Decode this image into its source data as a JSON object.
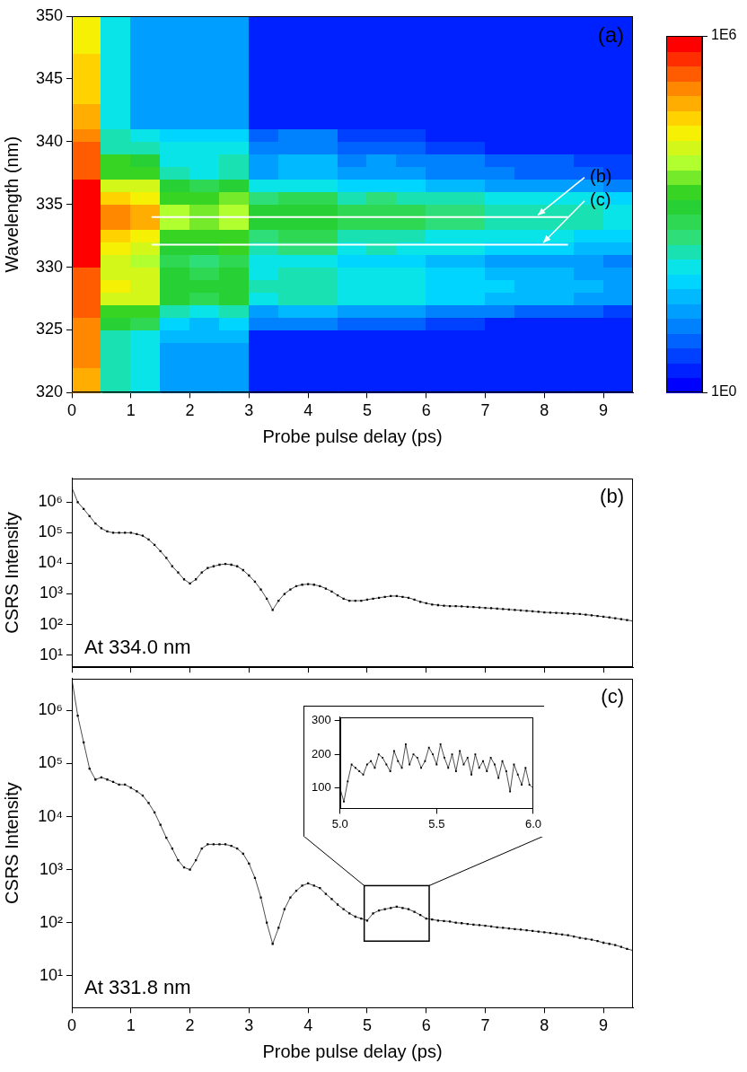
{
  "chart_data": [
    {
      "type": "heatmap",
      "panel_label": "(a)",
      "x_label": "Probe pulse delay (ps)",
      "y_label": "Wavelength (nm)",
      "xlim": [
        0,
        9.5
      ],
      "xticks": [
        0,
        1,
        2,
        3,
        4,
        5,
        6,
        7,
        8,
        9
      ],
      "ylim": [
        320,
        350
      ],
      "yticks": [
        320,
        325,
        330,
        335,
        340,
        345,
        350
      ],
      "grid": false,
      "x": [
        0.25,
        0.75,
        1.25,
        1.75,
        2.25,
        2.75,
        3.25,
        3.75,
        4.25,
        4.75,
        5.25,
        5.75,
        6.25,
        6.75,
        7.25,
        7.75,
        8.25,
        8.75,
        9.25
      ],
      "y": [
        320.5,
        321.5,
        322.5,
        323.5,
        324.5,
        325.5,
        326.5,
        327.5,
        328.5,
        329.5,
        330.5,
        331.5,
        332.5,
        333.5,
        334.5,
        335.5,
        336.5,
        337.5,
        338.5,
        339.5,
        340.5,
        341.5,
        342.5,
        343.5,
        344.5,
        345.5,
        346.5,
        347.5,
        348.5,
        349.5
      ],
      "z": [
        [
          60000,
          300,
          100,
          30,
          30,
          30,
          2,
          2,
          2,
          2,
          2,
          2,
          2,
          2,
          2,
          2,
          2,
          2,
          2
        ],
        [
          60000,
          300,
          100,
          30,
          30,
          30,
          2,
          2,
          2,
          2,
          2,
          2,
          2,
          2,
          2,
          2,
          2,
          2,
          2
        ],
        [
          100000,
          300,
          100,
          30,
          30,
          30,
          2,
          2,
          2,
          2,
          2,
          2,
          2,
          2,
          2,
          2,
          2,
          2,
          2
        ],
        [
          100000,
          300,
          100,
          30,
          30,
          30,
          2,
          2,
          2,
          2,
          2,
          2,
          2,
          2,
          2,
          2,
          2,
          2,
          2
        ],
        [
          100000,
          300,
          100,
          40,
          40,
          40,
          2,
          2,
          2,
          2,
          2,
          2,
          2,
          2,
          2,
          2,
          2,
          2,
          2
        ],
        [
          100000,
          1000,
          600,
          60,
          50,
          80,
          10,
          16,
          16,
          6,
          8,
          6,
          4,
          4,
          3,
          3,
          3,
          2,
          2
        ],
        [
          300000,
          3000,
          2000,
          200,
          160,
          250,
          30,
          50,
          50,
          20,
          25,
          20,
          13,
          13,
          10,
          8,
          8,
          6,
          5
        ],
        [
          300000,
          16000,
          10000,
          1000,
          800,
          1300,
          160,
          250,
          250,
          100,
          130,
          100,
          60,
          60,
          50,
          40,
          40,
          30,
          25
        ],
        [
          300000,
          20000,
          13000,
          1300,
          1000,
          1600,
          200,
          300,
          300,
          130,
          160,
          130,
          80,
          80,
          60,
          50,
          50,
          40,
          30
        ],
        [
          300000,
          16000,
          10000,
          1000,
          800,
          1300,
          160,
          250,
          250,
          100,
          130,
          100,
          60,
          60,
          50,
          40,
          40,
          30,
          25
        ],
        [
          600000,
          10000,
          6000,
          600,
          500,
          800,
          100,
          160,
          160,
          60,
          80,
          60,
          40,
          40,
          30,
          25,
          25,
          20,
          16
        ],
        [
          800000,
          25000,
          16000,
          1600,
          1300,
          2000,
          250,
          400,
          400,
          160,
          200,
          160,
          100,
          100,
          80,
          60,
          60,
          50,
          40
        ],
        [
          1000000,
          40000,
          25000,
          2500,
          2000,
          3000,
          400,
          600,
          600,
          250,
          300,
          250,
          160,
          160,
          130,
          100,
          100,
          80,
          60
        ],
        [
          1000000,
          100000,
          60000,
          6000,
          5000,
          8000,
          1000,
          1600,
          1600,
          600,
          800,
          600,
          400,
          400,
          300,
          250,
          250,
          200,
          160
        ],
        [
          1000000,
          100000,
          60000,
          6000,
          5000,
          8000,
          1000,
          1600,
          1600,
          600,
          800,
          600,
          400,
          400,
          300,
          250,
          250,
          200,
          160
        ],
        [
          1000000,
          50000,
          30000,
          3000,
          2500,
          4000,
          500,
          800,
          800,
          300,
          400,
          300,
          200,
          200,
          160,
          130,
          130,
          100,
          80
        ],
        [
          600000,
          16000,
          10000,
          1000,
          800,
          1300,
          100,
          160,
          160,
          60,
          80,
          60,
          40,
          40,
          30,
          25,
          25,
          20,
          16
        ],
        [
          200000,
          3000,
          2000,
          200,
          160,
          250,
          30,
          50,
          50,
          20,
          25,
          20,
          13,
          13,
          10,
          8,
          8,
          6,
          5
        ],
        [
          200000,
          2000,
          1300,
          160,
          130,
          200,
          25,
          40,
          40,
          16,
          20,
          16,
          10,
          10,
          8,
          6,
          6,
          5,
          4
        ],
        [
          200000,
          300,
          200,
          100,
          100,
          100,
          10,
          16,
          16,
          6,
          8,
          6,
          4,
          4,
          3,
          3,
          3,
          2,
          2
        ],
        [
          100000,
          200,
          100,
          60,
          60,
          60,
          6,
          10,
          10,
          4,
          5,
          4,
          3,
          3,
          2,
          2,
          2,
          2,
          2
        ],
        [
          60000,
          100,
          30,
          30,
          30,
          30,
          2,
          2,
          2,
          2,
          2,
          2,
          2,
          2,
          2,
          2,
          2,
          2,
          2
        ],
        [
          60000,
          100,
          30,
          30,
          30,
          30,
          2,
          2,
          2,
          2,
          2,
          2,
          2,
          2,
          2,
          2,
          2,
          2,
          2
        ],
        [
          50000,
          100,
          30,
          30,
          30,
          30,
          2,
          2,
          2,
          2,
          2,
          2,
          2,
          2,
          2,
          2,
          2,
          2,
          2
        ],
        [
          50000,
          100,
          30,
          30,
          30,
          30,
          2,
          2,
          2,
          2,
          2,
          2,
          2,
          2,
          2,
          2,
          2,
          2,
          2
        ],
        [
          40000,
          100,
          30,
          30,
          30,
          30,
          2,
          2,
          2,
          2,
          2,
          2,
          2,
          2,
          2,
          2,
          2,
          2,
          2
        ],
        [
          40000,
          100,
          30,
          30,
          30,
          30,
          2,
          2,
          2,
          2,
          2,
          2,
          2,
          2,
          2,
          2,
          2,
          2,
          2
        ],
        [
          30000,
          100,
          30,
          30,
          30,
          30,
          2,
          2,
          2,
          2,
          2,
          2,
          2,
          2,
          2,
          2,
          2,
          2,
          2
        ],
        [
          30000,
          100,
          30,
          30,
          30,
          30,
          2,
          2,
          2,
          2,
          2,
          2,
          2,
          2,
          2,
          2,
          2,
          2,
          2
        ],
        [
          30000,
          100,
          30,
          30,
          30,
          30,
          2,
          2,
          2,
          2,
          2,
          2,
          2,
          2,
          2,
          2,
          2,
          2,
          2
        ]
      ],
      "colorbar_range": [
        1,
        1000000
      ],
      "colorbar_ticks": [
        {
          "value": 1,
          "label": "1E0"
        },
        {
          "value": 1000000,
          "label": "1E6"
        }
      ],
      "guide_lines": [
        {
          "label": "(b)",
          "y": 334.0,
          "x": [
            1.35,
            8.4
          ]
        },
        {
          "label": "(c)",
          "y": 331.8,
          "x": [
            1.35,
            8.4
          ]
        }
      ]
    },
    {
      "type": "line",
      "panel_label": "(b)",
      "annotation": "At 334.0 nm",
      "y_label": "CSRS Intensity",
      "log": "y",
      "grid": false,
      "tick_labels": "y",
      "marker": "square",
      "color": "#000000",
      "xlim": [
        0,
        9.5
      ],
      "xticks": [
        0,
        1,
        2,
        3,
        4,
        5,
        6,
        7,
        8,
        9
      ],
      "ylim": [
        4,
        6000000
      ],
      "yticks": [
        {
          "value": 10,
          "label": "10¹"
        },
        {
          "value": 100,
          "label": "10²"
        },
        {
          "value": 1000,
          "label": "10³"
        },
        {
          "value": 10000,
          "label": "10⁴"
        },
        {
          "value": 100000,
          "label": "10⁵"
        },
        {
          "value": 1000000,
          "label": "10⁶"
        }
      ],
      "x": [
        0,
        0.1,
        0.2,
        0.3,
        0.4,
        0.5,
        0.6,
        0.7,
        0.8,
        0.9,
        1.0,
        1.1,
        1.2,
        1.3,
        1.4,
        1.5,
        1.6,
        1.7,
        1.8,
        1.9,
        2.0,
        2.1,
        2.2,
        2.3,
        2.4,
        2.5,
        2.6,
        2.7,
        2.8,
        2.9,
        3.0,
        3.1,
        3.2,
        3.3,
        3.4,
        3.5,
        3.6,
        3.7,
        3.8,
        3.9,
        4.0,
        4.1,
        4.2,
        4.3,
        4.4,
        4.5,
        4.6,
        4.7,
        4.8,
        4.9,
        5.0,
        5.1,
        5.2,
        5.3,
        5.4,
        5.5,
        5.6,
        5.7,
        5.8,
        5.9,
        6.0,
        6.1,
        6.2,
        6.3,
        6.4,
        6.5,
        6.6,
        6.7,
        6.8,
        6.9,
        7.0,
        7.1,
        7.2,
        7.3,
        7.4,
        7.5,
        7.6,
        7.7,
        7.8,
        7.9,
        8.0,
        8.1,
        8.2,
        8.3,
        8.4,
        8.5,
        8.6,
        8.7,
        8.8,
        8.9,
        9.0,
        9.1,
        9.2,
        9.3,
        9.4,
        9.5
      ],
      "values": [
        3000000,
        1000000,
        600000,
        350000,
        200000,
        140000,
        110000,
        100000,
        100000,
        100000,
        100000,
        90000,
        80000,
        60000,
        40000,
        25000,
        15000,
        8000,
        5000,
        3000,
        2200,
        3000,
        5000,
        7000,
        8000,
        9000,
        9500,
        9000,
        8000,
        6000,
        4000,
        2500,
        1400,
        700,
        300,
        600,
        1000,
        1400,
        1800,
        2000,
        2100,
        2000,
        1800,
        1500,
        1200,
        900,
        700,
        600,
        600,
        600,
        650,
        700,
        750,
        800,
        850,
        850,
        800,
        750,
        650,
        550,
        500,
        450,
        430,
        410,
        400,
        400,
        390,
        380,
        370,
        360,
        350,
        340,
        330,
        320,
        310,
        300,
        290,
        280,
        270,
        260,
        250,
        245,
        240,
        235,
        230,
        225,
        220,
        210,
        200,
        190,
        180,
        170,
        160,
        150,
        140,
        130
      ]
    },
    {
      "type": "line",
      "panel_label": "(c)",
      "annotation": "At 331.8 nm",
      "x_label": "Probe pulse delay (ps)",
      "y_label": "CSRS Intensity",
      "log": "y",
      "grid": false,
      "marker": "square",
      "color": "#000000",
      "xlim": [
        0,
        9.5
      ],
      "xticks": [
        0,
        1,
        2,
        3,
        4,
        5,
        6,
        7,
        8,
        9
      ],
      "ylim": [
        2.5,
        4000000
      ],
      "yticks": [
        {
          "value": 10,
          "label": "10¹"
        },
        {
          "value": 100,
          "label": "10²"
        },
        {
          "value": 1000,
          "label": "10³"
        },
        {
          "value": 10000,
          "label": "10⁴"
        },
        {
          "value": 100000,
          "label": "10⁵"
        },
        {
          "value": 1000000,
          "label": "10⁶"
        }
      ],
      "x": [
        0,
        0.1,
        0.2,
        0.3,
        0.4,
        0.5,
        0.6,
        0.7,
        0.8,
        0.9,
        1.0,
        1.1,
        1.2,
        1.3,
        1.4,
        1.5,
        1.6,
        1.7,
        1.8,
        1.9,
        2.0,
        2.1,
        2.2,
        2.3,
        2.4,
        2.5,
        2.6,
        2.7,
        2.8,
        2.9,
        3.0,
        3.1,
        3.2,
        3.3,
        3.4,
        3.5,
        3.6,
        3.7,
        3.8,
        3.9,
        4.0,
        4.1,
        4.2,
        4.3,
        4.4,
        4.5,
        4.6,
        4.7,
        4.8,
        4.9,
        5.0,
        5.1,
        5.2,
        5.3,
        5.4,
        5.5,
        5.6,
        5.7,
        5.8,
        5.9,
        6.0,
        6.1,
        6.2,
        6.3,
        6.4,
        6.5,
        6.6,
        6.7,
        6.8,
        6.9,
        7.0,
        7.1,
        7.2,
        7.3,
        7.4,
        7.5,
        7.6,
        7.7,
        7.8,
        7.9,
        8.0,
        8.1,
        8.2,
        8.3,
        8.4,
        8.5,
        8.6,
        8.7,
        8.8,
        8.9,
        9.0,
        9.1,
        9.2,
        9.3,
        9.4,
        9.5
      ],
      "values": [
        4000000,
        800000,
        250000,
        80000,
        50000,
        55000,
        50000,
        45000,
        40000,
        40000,
        35000,
        30000,
        25000,
        18000,
        12000,
        7000,
        4000,
        2500,
        1500,
        1100,
        1000,
        1500,
        2500,
        3000,
        3000,
        3000,
        3000,
        2800,
        2500,
        2000,
        1300,
        700,
        300,
        100,
        40,
        80,
        180,
        300,
        400,
        500,
        550,
        500,
        450,
        350,
        280,
        220,
        180,
        150,
        130,
        120,
        110,
        150,
        170,
        180,
        190,
        200,
        190,
        180,
        160,
        140,
        120,
        115,
        110,
        108,
        105,
        100,
        98,
        95,
        92,
        90,
        88,
        85,
        82,
        80,
        78,
        76,
        74,
        72,
        70,
        68,
        66,
        64,
        62,
        60,
        58,
        55,
        52,
        50,
        48,
        45,
        42,
        40,
        38,
        35,
        32,
        30
      ],
      "zoom_box": {
        "x": [
          4.95,
          6.05
        ],
        "y": [
          45,
          500
        ]
      },
      "inset": {
        "type": "line",
        "marker": "square",
        "color": "#000000",
        "grid": false,
        "xlim": [
          5.0,
          6.0
        ],
        "xticks": [
          {
            "value": 5,
            "label": "5.0"
          },
          {
            "value": 5.5,
            "label": "5.5"
          },
          {
            "value": 6,
            "label": "6.0"
          }
        ],
        "ylim": [
          40,
          310
        ],
        "yticks": [
          100,
          200,
          300
        ],
        "x": [
          5.0,
          5.02,
          5.04,
          5.06,
          5.08,
          5.1,
          5.12,
          5.14,
          5.16,
          5.18,
          5.2,
          5.22,
          5.24,
          5.26,
          5.28,
          5.3,
          5.32,
          5.34,
          5.36,
          5.38,
          5.4,
          5.42,
          5.44,
          5.46,
          5.48,
          5.5,
          5.52,
          5.54,
          5.56,
          5.58,
          5.6,
          5.62,
          5.64,
          5.66,
          5.68,
          5.7,
          5.72,
          5.74,
          5.76,
          5.78,
          5.8,
          5.82,
          5.84,
          5.86,
          5.88,
          5.9,
          5.92,
          5.94,
          5.96,
          5.98,
          6.0
        ],
        "values": [
          100,
          60,
          120,
          170,
          160,
          150,
          140,
          170,
          180,
          160,
          200,
          190,
          170,
          150,
          210,
          180,
          160,
          230,
          170,
          200,
          190,
          160,
          180,
          220,
          200,
          170,
          230,
          190,
          160,
          200,
          150,
          210,
          170,
          190,
          140,
          200,
          160,
          180,
          150,
          190,
          170,
          130,
          180,
          150,
          90,
          170,
          140,
          110,
          160,
          110,
          100
        ]
      }
    }
  ]
}
